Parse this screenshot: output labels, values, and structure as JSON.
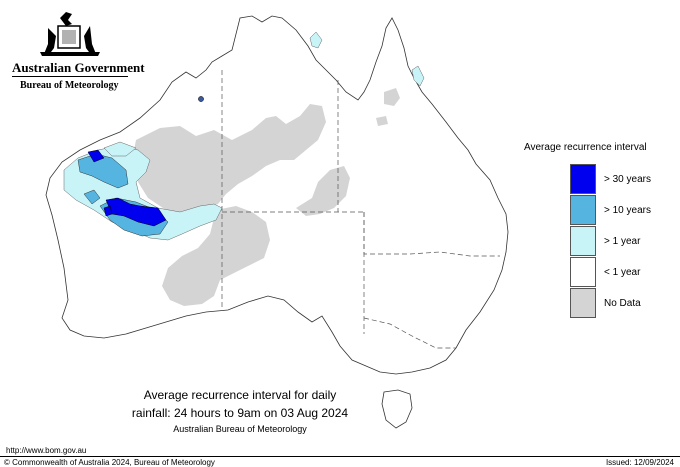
{
  "header": {
    "government": "Australian Government",
    "agency": "Bureau of Meteorology",
    "emblem_icon": "coat-of-arms-icon"
  },
  "legend": {
    "title": "Average recurrence interval",
    "items": [
      {
        "label": "> 30 years",
        "color": "#0000ee"
      },
      {
        "label": "> 10 years",
        "color": "#55b4e0"
      },
      {
        "label": "> 1 year",
        "color": "#c8f4f8"
      },
      {
        "label": "< 1 year",
        "color": "#ffffff"
      },
      {
        "label": "No Data",
        "color": "#d4d4d4"
      }
    ]
  },
  "caption": {
    "line1": "Average recurrence interval for daily",
    "line2": "rainfall: 24 hours to 9am on 03 Aug 2024",
    "line3": "Australian Bureau of Meteorology"
  },
  "footer": {
    "url": "http://www.bom.gov.au",
    "copyright": "© Commonwealth of Australia 2024, Bureau of Meteorology",
    "issued": "Issued: 12/09/2024"
  }
}
